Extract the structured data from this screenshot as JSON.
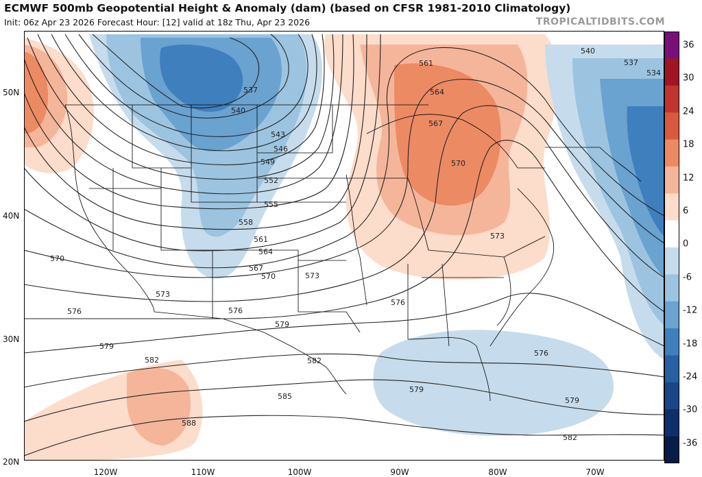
{
  "header": {
    "title": "ECMWF 500mb Geopotential Height & Anomaly (dam) (based on CFSR 1981-2010 Climatology)",
    "subtitle": "Init: 06z Apr 23 2026   Forecast Hour: [12]   valid at 18z Thu, Apr 23 2026",
    "credit": "TROPICALTIDBITS.COM"
  },
  "lat_labels": [
    "50N",
    "40N",
    "30N",
    "20N"
  ],
  "lon_labels": [
    "120W",
    "110W",
    "100W",
    "90W",
    "80W",
    "70W"
  ],
  "colorbar": {
    "labels": [
      "36",
      "30",
      "24",
      "18",
      "12",
      "6",
      "0",
      "-6",
      "-12",
      "-18",
      "-24",
      "-30",
      "-36"
    ],
    "colors": [
      "#7a0f7a",
      "#a01423",
      "#c0342f",
      "#d9593f",
      "#ec8a64",
      "#f5b59a",
      "#fcdcca",
      "#ffffff",
      "#c6dcec",
      "#9cc4e0",
      "#6aa2d0",
      "#3f7fbe",
      "#2760a4",
      "#1a4689",
      "#0f2e6c",
      "#081c48"
    ]
  },
  "contour_labels": [
    {
      "text": "537"
    },
    {
      "text": "540"
    },
    {
      "text": "543"
    },
    {
      "text": "546"
    },
    {
      "text": "549"
    },
    {
      "text": "552"
    },
    {
      "text": "555"
    },
    {
      "text": "558"
    },
    {
      "text": "561"
    },
    {
      "text": "564"
    },
    {
      "text": "567"
    },
    {
      "text": "570"
    },
    {
      "text": "573"
    },
    {
      "text": "576"
    },
    {
      "text": "579"
    },
    {
      "text": "582"
    },
    {
      "text": "585"
    },
    {
      "text": "588"
    },
    {
      "text": "561"
    },
    {
      "text": "564"
    },
    {
      "text": "567"
    },
    {
      "text": "570"
    },
    {
      "text": "573"
    },
    {
      "text": "540"
    },
    {
      "text": "537"
    },
    {
      "text": "534"
    },
    {
      "text": "570"
    },
    {
      "text": "573"
    },
    {
      "text": "576"
    },
    {
      "text": "579"
    },
    {
      "text": "582"
    },
    {
      "text": "576"
    },
    {
      "text": "579"
    },
    {
      "text": "582"
    },
    {
      "text": "576"
    },
    {
      "text": "579"
    },
    {
      "text": "582"
    },
    {
      "text": "588"
    }
  ]
}
